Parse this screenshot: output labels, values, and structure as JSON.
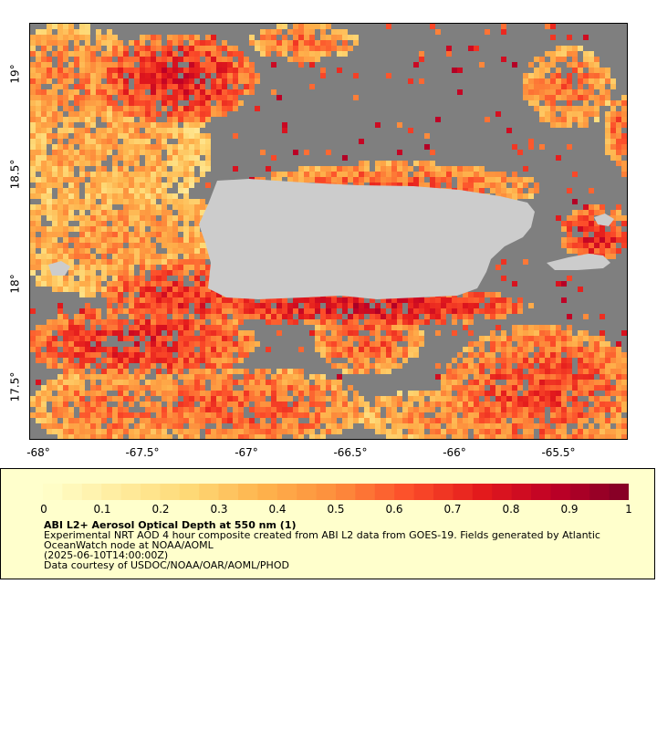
{
  "map": {
    "y_axis_labels": [
      "19°",
      "18.5°",
      "18°",
      "17.5°"
    ],
    "x_axis_labels": [
      "-68°",
      "-67.5°",
      "-67°",
      "-66.5°",
      "-66°",
      "-65.5°"
    ],
    "lon_range": [
      -68.05,
      -65.17
    ],
    "lat_range": [
      17.23,
      19.24
    ],
    "colors": {
      "no_data": "#7f7f7f",
      "land": "#cccccc"
    }
  },
  "legend": {
    "colorbar_labels": [
      "0",
      "0.1",
      "0.2",
      "0.3",
      "0.4",
      "0.5",
      "0.6",
      "0.7",
      "0.8",
      "0.9",
      "1"
    ],
    "colorbar_range": [
      0,
      1
    ],
    "title": "ABI L2+ Aerosol Optical Depth at 550 nm (1)",
    "description": "Experimental NRT AOD 4 hour composite created from ABI L2 data from GOES-19. Fields generated by Atlantic OceanWatch node at NOAA/AOML",
    "timestamp": "(2025-06-10T14:00:00Z)",
    "credit": "Data courtesy of USDOC/NOAA/OAR/AOML/PHOD",
    "colormap": [
      "#ffffcc",
      "#ffeda0",
      "#fed976",
      "#feb24c",
      "#fd8d3c",
      "#fc4e2a",
      "#e31a1c",
      "#bd0026",
      "#800026"
    ]
  }
}
